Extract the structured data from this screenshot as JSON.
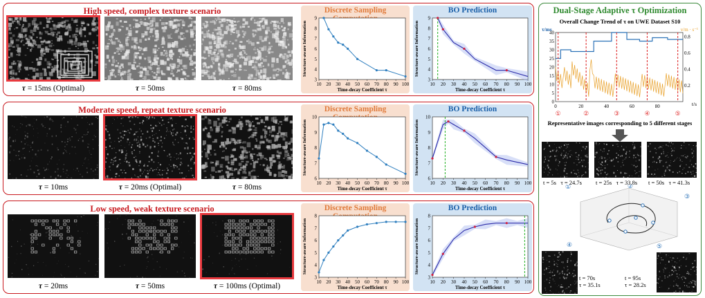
{
  "rows": [
    {
      "title": "High speed, complex texture scenario",
      "captions": [
        {
          "sym": "τ",
          "text": " = 15ms (Optimal)",
          "optimal": true
        },
        {
          "sym": "τ",
          "text": " = 50ms",
          "optimal": false
        },
        {
          "sym": "τ",
          "text": " = 80ms",
          "optimal": false
        }
      ],
      "ds_title": "Discrete Sampling Computation",
      "bo_title": "BO Prediction",
      "ds": {
        "x": [
          15,
          20,
          25,
          30,
          35,
          40,
          50,
          70,
          80,
          100
        ],
        "y": [
          9.0,
          7.9,
          7.2,
          6.6,
          6.4,
          6.0,
          5.0,
          3.9,
          3.9,
          3.3
        ],
        "ylim": [
          3,
          9
        ],
        "yticks": [
          3,
          4,
          5,
          6,
          7,
          8,
          9
        ]
      },
      "bo": {
        "x": [
          15,
          20,
          30,
          40,
          50,
          70,
          80,
          100
        ],
        "y": [
          9.0,
          7.9,
          6.6,
          6.0,
          5.0,
          3.9,
          3.9,
          3.3
        ],
        "ylim": [
          3,
          9
        ],
        "yticks": [
          3,
          4,
          5,
          6,
          7,
          8,
          9
        ],
        "opt": 15,
        "samples": [
          20,
          40,
          80
        ]
      }
    },
    {
      "title": "Moderate speed, repeat texture scenario",
      "captions": [
        {
          "sym": "τ",
          "text": " = 10ms",
          "optimal": false
        },
        {
          "sym": "τ",
          "text": " = 20ms (Optimal)",
          "optimal": true
        },
        {
          "sym": "τ",
          "text": " = 80ms",
          "optimal": false
        }
      ],
      "ds_title": "Discrete Sampling Computation",
      "bo_title": "BO Prediction",
      "ds": {
        "x": [
          10,
          15,
          20,
          25,
          30,
          35,
          40,
          50,
          60,
          70,
          80,
          100
        ],
        "y": [
          7.3,
          9.5,
          9.6,
          9.5,
          9.1,
          8.9,
          8.6,
          8.3,
          7.8,
          7.4,
          6.9,
          6.3
        ],
        "ylim": [
          6,
          10
        ],
        "yticks": [
          6,
          7,
          8,
          9,
          10
        ]
      },
      "bo": {
        "x": [
          10,
          20,
          25,
          30,
          40,
          50,
          70,
          80,
          100
        ],
        "y": [
          7.3,
          9.5,
          9.7,
          9.5,
          9.1,
          8.6,
          7.4,
          7.2,
          6.9
        ],
        "ylim": [
          6,
          10
        ],
        "yticks": [
          6,
          7,
          8,
          9,
          10
        ],
        "opt": 22,
        "samples": [
          25,
          40,
          70
        ]
      }
    },
    {
      "title": "Low speed, weak texture scenario",
      "captions": [
        {
          "sym": "τ",
          "text": " = 20ms",
          "optimal": false
        },
        {
          "sym": "τ",
          "text": " = 50ms",
          "optimal": false
        },
        {
          "sym": "τ",
          "text": " = 100ms (Optimal)",
          "optimal": true
        }
      ],
      "ds_title": "Discrete Sampling Computation",
      "bo_title": "BO Prediction",
      "ds": {
        "x": [
          10,
          15,
          20,
          25,
          30,
          35,
          40,
          50,
          60,
          70,
          80,
          90,
          100
        ],
        "y": [
          3.4,
          4.4,
          5.0,
          5.5,
          6.0,
          6.4,
          6.8,
          7.1,
          7.3,
          7.4,
          7.5,
          7.5,
          7.5
        ],
        "ylim": [
          3,
          8
        ],
        "yticks": [
          3,
          4,
          5,
          6,
          7,
          8
        ]
      },
      "bo": {
        "x": [
          10,
          20,
          30,
          40,
          50,
          60,
          70,
          80,
          90,
          100
        ],
        "y": [
          3.2,
          4.9,
          6.1,
          6.8,
          7.1,
          7.3,
          7.4,
          7.4,
          7.4,
          7.4
        ],
        "ylim": [
          3,
          8
        ],
        "yticks": [
          3,
          4,
          5,
          6,
          7,
          8
        ],
        "opt": 97,
        "samples": [
          20,
          50,
          80
        ]
      }
    }
  ],
  "axes": {
    "xlabel": "Time-decay Coefficient τ",
    "ylabel": "Structure-aware Information",
    "xticks": [
      10,
      20,
      30,
      40,
      50,
      60,
      70,
      80,
      90,
      100
    ]
  },
  "right": {
    "title": "Dual-Stage Adaptive τ Optimization",
    "subtitle": "Overall Change Trend of τ on UWE Dataset S10",
    "y_left_label": "τ/ms",
    "y_right_label": "v/m · s⁻¹",
    "t_label": "t/s",
    "y_left_ticks": [
      0,
      5,
      10,
      15,
      20,
      25,
      30,
      35,
      40
    ],
    "y_right_ticks": [
      "0.2",
      "0.4",
      "0.6",
      "0.8"
    ],
    "x_ticks": [
      0,
      20,
      40,
      60,
      80
    ],
    "stages": [
      "①",
      "②",
      "③",
      "④",
      "⑤"
    ],
    "rep_caption": "Representative images corresponding to 5 different stages",
    "images": [
      {
        "t": "t = 5s",
        "tau": "τ = 24.7s",
        "stage": "①"
      },
      {
        "t": "t = 25s",
        "tau": "τ = 33.8s",
        "stage": "②"
      },
      {
        "t": "t = 50s",
        "tau": "τ = 41.3s",
        "stage": "③"
      },
      {
        "t": "t = 70s",
        "tau": "τ = 35.1s",
        "stage": "④"
      },
      {
        "t": "t = 95s",
        "tau": "τ = 28.2s",
        "stage": "⑤"
      }
    ],
    "colors": {
      "tau_line": "#2d73b8",
      "speed_line": "#e8a028",
      "stage_line": "#e03030"
    }
  }
}
